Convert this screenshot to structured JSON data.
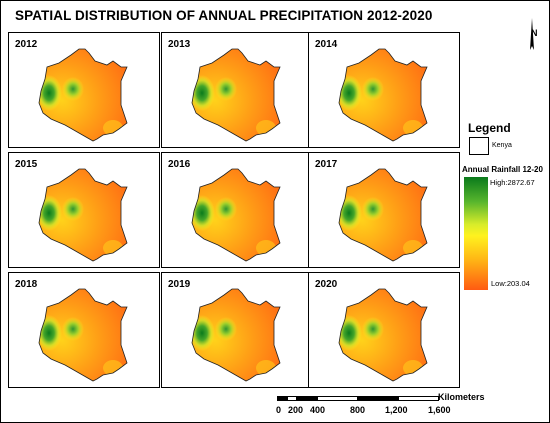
{
  "title": "SPATIAL DISTRIBUTION OF ANNUAL PRECIPITATION 2012-2020",
  "north_label": "N",
  "panels": [
    {
      "year": "2012"
    },
    {
      "year": "2013"
    },
    {
      "year": "2014"
    },
    {
      "year": "2015"
    },
    {
      "year": "2016"
    },
    {
      "year": "2017"
    },
    {
      "year": "2018"
    },
    {
      "year": "2019"
    },
    {
      "year": "2020"
    }
  ],
  "legend": {
    "title": "Legend",
    "boundary_label": "Kenya",
    "ramp_title": "Annual Rainfall 12-20",
    "high_label": "High:2872.67",
    "low_label": "Low:203.04",
    "high_color": "#0a7a1c",
    "mid_color": "#fff21f",
    "low_color": "#ff5a12"
  },
  "scale": {
    "ticks": [
      "0",
      "200",
      "400",
      "800",
      "1,200",
      "1,600"
    ],
    "units": "Kilometers"
  }
}
